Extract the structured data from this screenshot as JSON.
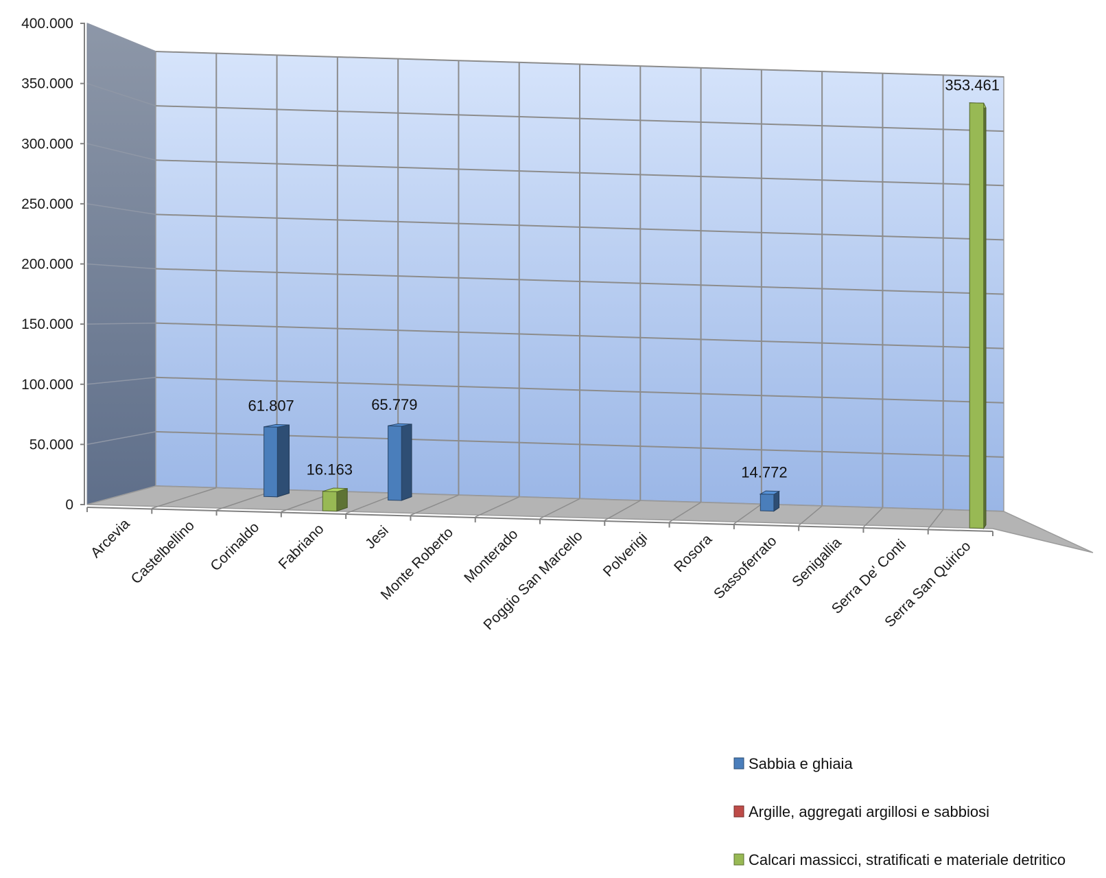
{
  "chart_data": {
    "type": "bar",
    "title": "",
    "xlabel": "",
    "ylabel": "",
    "ylim": [
      0,
      400000
    ],
    "yticks": [
      0,
      50000,
      100000,
      150000,
      200000,
      250000,
      300000,
      350000,
      400000
    ],
    "ytick_labels": [
      "0",
      "50.000",
      "100.000",
      "150.000",
      "200.000",
      "250.000",
      "300.000",
      "350.000",
      "400.000"
    ],
    "grid": true,
    "legend_position": "bottom-right",
    "categories": [
      "Arcevia",
      "Castelbellino",
      "Corinaldo",
      "Fabriano",
      "Jesi",
      "Monte Roberto",
      "Monterado",
      "Poggio San Marcello",
      "Polverigi",
      "Rosora",
      "Sassoferrato",
      "Senigallia",
      "Serra De' Conti",
      "Serra San Quirico"
    ],
    "series": [
      {
        "name": "Sabbia e ghiaia",
        "color": "#4a7ebb",
        "values": [
          null,
          null,
          61807,
          null,
          65779,
          null,
          null,
          null,
          null,
          null,
          14772,
          null,
          null,
          null
        ],
        "labels": [
          null,
          null,
          "61.807",
          null,
          "65.779",
          null,
          null,
          null,
          null,
          null,
          "14.772",
          null,
          null,
          null
        ]
      },
      {
        "name": "Argille, aggregati argillosi e sabbiosi",
        "color": "#be4b48",
        "values": [
          null,
          null,
          null,
          null,
          null,
          null,
          null,
          null,
          null,
          null,
          null,
          null,
          null,
          null
        ],
        "labels": [
          null,
          null,
          null,
          null,
          null,
          null,
          null,
          null,
          null,
          null,
          null,
          null,
          null,
          null
        ]
      },
      {
        "name": "Calcari massicci, stratificati e materiale detritico",
        "color": "#98b954",
        "values": [
          null,
          null,
          null,
          16163,
          null,
          null,
          null,
          null,
          null,
          null,
          null,
          null,
          null,
          353461
        ],
        "labels": [
          null,
          null,
          null,
          "16.163",
          null,
          null,
          null,
          null,
          null,
          null,
          null,
          null,
          null,
          "353.461"
        ]
      }
    ]
  }
}
